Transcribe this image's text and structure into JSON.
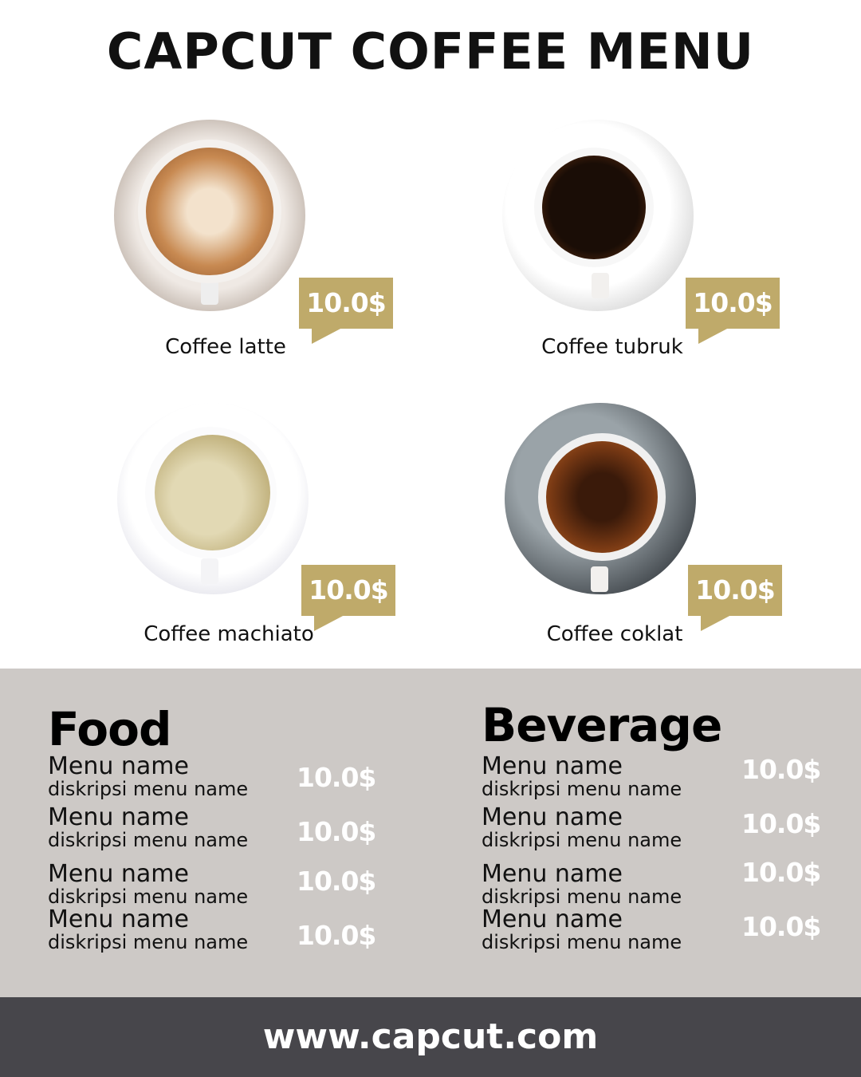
{
  "title": "CAPCUT COFFEE MENU",
  "colors": {
    "accent": "#bfaa6a",
    "menu_bg": "#cdc9c6",
    "footer_bg": "#47464b"
  },
  "products": [
    {
      "name": "Coffee latte",
      "price": "10.0$"
    },
    {
      "name": "Coffee tubruk",
      "price": "10.0$"
    },
    {
      "name": "Coffee machiato",
      "price": "10.0$"
    },
    {
      "name": "Coffee coklat",
      "price": "10.0$"
    }
  ],
  "food": {
    "title": "Food",
    "items": [
      {
        "name": "Menu name",
        "desc": "diskripsi menu name",
        "price": "10.0$"
      },
      {
        "name": "Menu name",
        "desc": "diskripsi menu name",
        "price": "10.0$"
      },
      {
        "name": "Menu name",
        "desc": "diskripsi menu name",
        "price": "10.0$"
      },
      {
        "name": "Menu name",
        "desc": "diskripsi menu name",
        "price": "10.0$"
      }
    ]
  },
  "beverage": {
    "title": "Beverage",
    "items": [
      {
        "name": "Menu name",
        "desc": "diskripsi menu name",
        "price": "10.0$"
      },
      {
        "name": "Menu name",
        "desc": "diskripsi menu name",
        "price": "10.0$"
      },
      {
        "name": "Menu name",
        "desc": "diskripsi menu name",
        "price": "10.0$"
      },
      {
        "name": "Menu name",
        "desc": "diskripsi menu name",
        "price": "10.0$"
      }
    ]
  },
  "footer": {
    "url": "www.capcut.com"
  }
}
